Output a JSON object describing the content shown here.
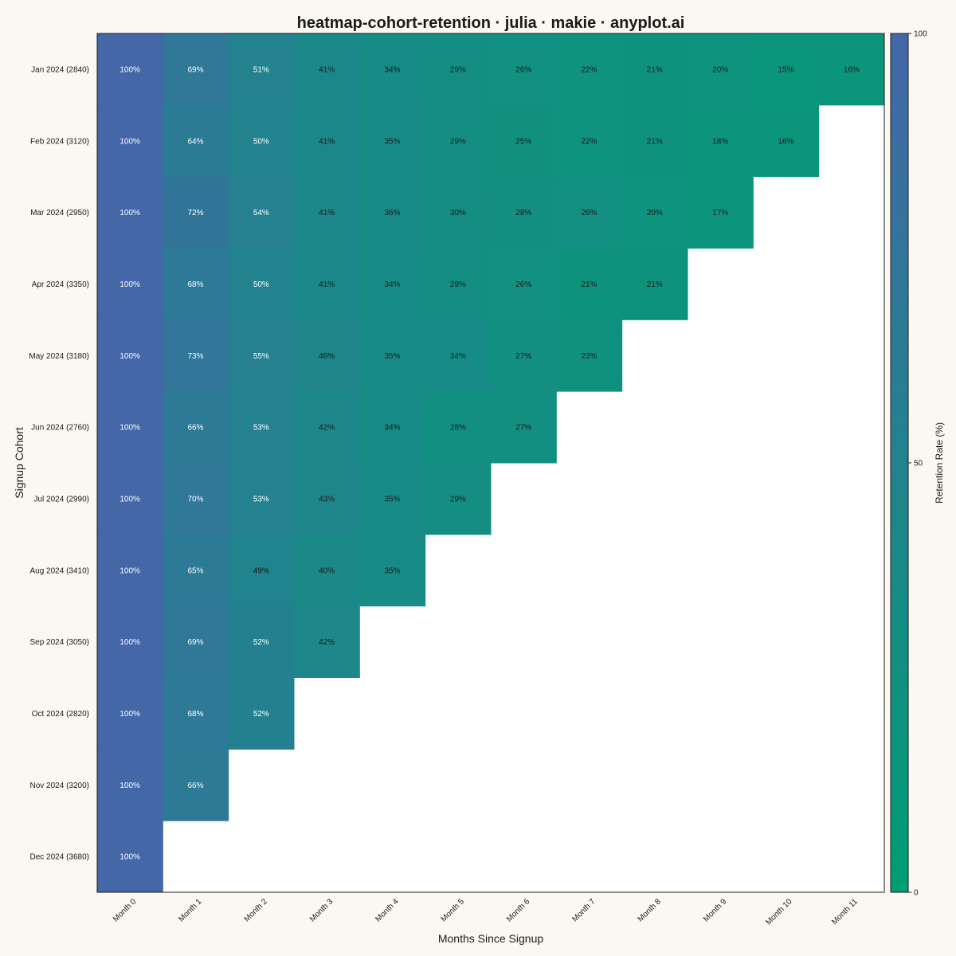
{
  "chart_data": {
    "type": "heatmap",
    "title": "heatmap-cohort-retention · julia · makie · anyplot.ai",
    "xlabel": "Months Since Signup",
    "ylabel": "Signup Cohort",
    "x_categories": [
      "Month 0",
      "Month 1",
      "Month 2",
      "Month 3",
      "Month 4",
      "Month 5",
      "Month 6",
      "Month 7",
      "Month 8",
      "Month 9",
      "Month 10",
      "Month 11"
    ],
    "y_categories": [
      "Jan 2024 (2840)",
      "Feb 2024 (3120)",
      "Mar 2024 (2950)",
      "Apr 2024 (3350)",
      "May 2024 (3180)",
      "Jun 2024 (2760)",
      "Jul 2024 (2990)",
      "Aug 2024 (3410)",
      "Sep 2024 (3050)",
      "Oct 2024 (2820)",
      "Nov 2024 (3200)",
      "Dec 2024 (3680)"
    ],
    "values": [
      [
        100,
        69,
        51,
        41,
        34,
        29,
        26,
        22,
        21,
        20,
        15,
        16
      ],
      [
        100,
        64,
        50,
        41,
        35,
        29,
        25,
        22,
        21,
        18,
        16
      ],
      [
        100,
        72,
        54,
        41,
        36,
        30,
        28,
        26,
        20,
        17
      ],
      [
        100,
        68,
        50,
        41,
        34,
        29,
        26,
        21,
        21
      ],
      [
        100,
        73,
        55,
        46,
        35,
        34,
        27,
        23
      ],
      [
        100,
        66,
        53,
        42,
        34,
        28,
        27
      ],
      [
        100,
        70,
        53,
        43,
        35,
        29
      ],
      [
        100,
        65,
        49,
        40,
        35
      ],
      [
        100,
        69,
        52,
        42
      ],
      [
        100,
        68,
        52
      ],
      [
        100,
        66
      ],
      [
        100
      ]
    ],
    "value_suffix": "%",
    "colorbar": {
      "label": "Retention Rate (%)",
      "range": [
        0,
        100
      ],
      "ticks": [
        "0",
        "50",
        "100"
      ],
      "color_low": "#009E73",
      "color_high": "#4467A8"
    },
    "colors": {
      "background": "#FAF8F1",
      "empty_cell": "#FFFFFF",
      "text_dark": "#1a1a1a",
      "text_light": "#FFFFFF"
    }
  }
}
